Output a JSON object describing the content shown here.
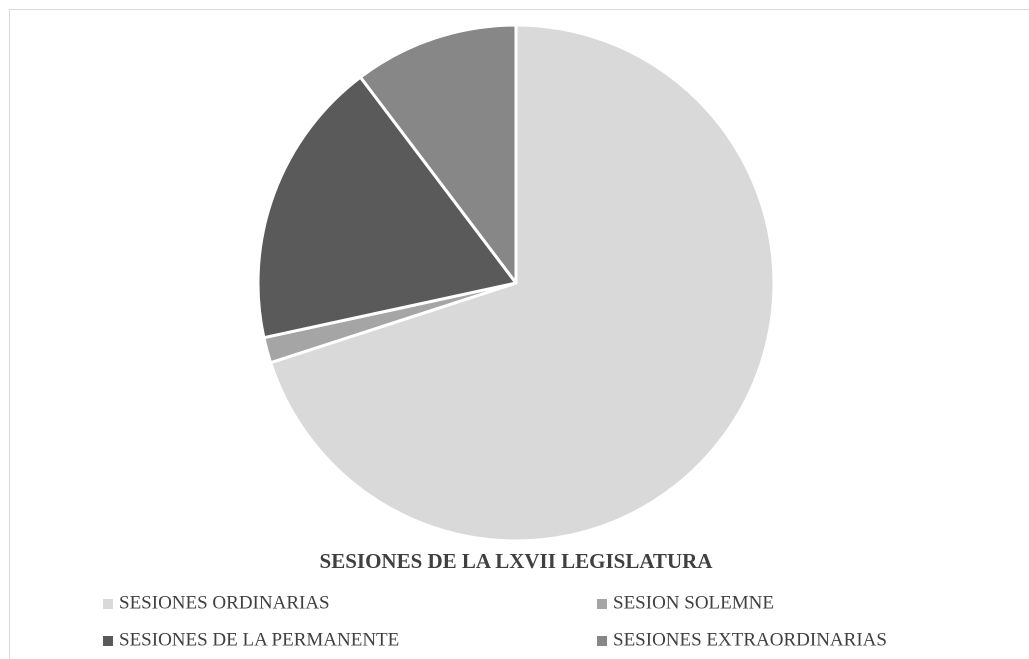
{
  "chart_data": {
    "type": "pie",
    "title": "SESIONES DE LA LXVII LEGISLATURA",
    "categories": [
      "SESIONES ORDINARIAS",
      "SESION SOLEMNE",
      "SESIONES DE LA PERMANENTE",
      "SESIONES EXTRAORDINARIAS"
    ],
    "values": [
      70,
      1.6,
      18.1,
      10.3
    ],
    "colors": [
      "#d9d9d9",
      "#a5a5a5",
      "#5a5a5a",
      "#878787"
    ]
  }
}
